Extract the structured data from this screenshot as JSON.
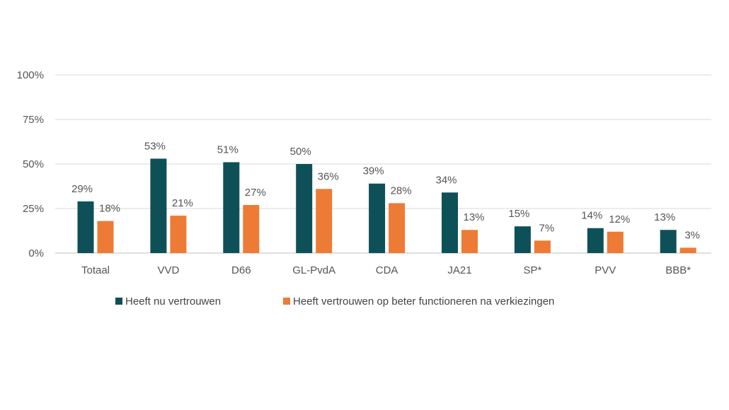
{
  "chart_data": {
    "type": "bar",
    "categories": [
      "Totaal",
      "VVD",
      "D66",
      "GL-PvdA",
      "CDA",
      "JA21",
      "SP*",
      "PVV",
      "BBB*"
    ],
    "series": [
      {
        "name": "Heeft nu vertrouwen",
        "values": [
          29,
          53,
          51,
          50,
          39,
          34,
          15,
          14,
          13
        ],
        "labels": [
          "29%",
          "53%",
          "51%",
          "50%",
          "39%",
          "34%",
          "15%",
          "14%",
          "13%"
        ],
        "color": "#0e5058"
      },
      {
        "name": "Heeft vertrouwen op beter functioneren na verkiezingen",
        "values": [
          18,
          21,
          27,
          36,
          28,
          13,
          7,
          12,
          3
        ],
        "labels": [
          "18%",
          "21%",
          "27%",
          "36%",
          "28%",
          "13%",
          "7%",
          "12%",
          "3%"
        ],
        "color": "#ee7b35"
      }
    ],
    "yticks": [
      "0%",
      "25%",
      "50%",
      "75%",
      "100%"
    ],
    "ylim": [
      0,
      100
    ],
    "grid": true,
    "legend_position": "bottom"
  }
}
